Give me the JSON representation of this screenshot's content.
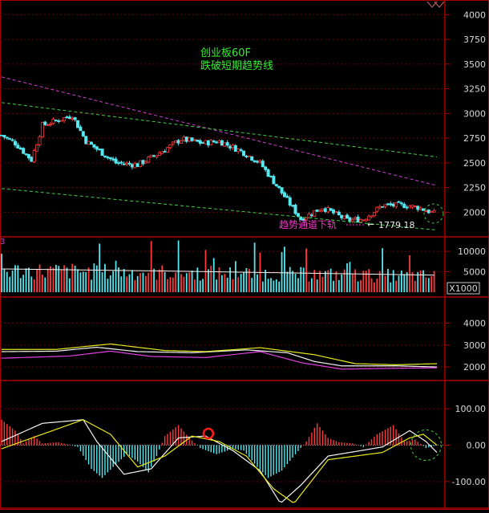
{
  "colors": {
    "background": "#000000",
    "panel_border": "#aa0000",
    "grid": "#6a0000",
    "axis_text": "#d8d8d8",
    "up": "#ff3a3a",
    "down": "#54e8f0",
    "upper_channel": "#d040d0",
    "green_lines": "#44cc44",
    "annotation_green": "#33ee33",
    "annotation_magenta": "#ff33cc",
    "ma_white": "#f4f4f4",
    "ma_yellow": "#e8e820",
    "ma_magenta": "#e040e0",
    "marker_red": "#ff1a1a"
  },
  "chart_data": [
    {
      "type": "candlestick",
      "title": "创业板60F",
      "subtitle": "跌破短期趋势线",
      "annotations": [
        "趋势通道下轨",
        "1779.18"
      ],
      "yticks": [
        4000,
        3750,
        3500,
        3250,
        3000,
        2750,
        2500,
        2250,
        2000
      ],
      "ylim": [
        1800,
        4100
      ],
      "grid": true,
      "anchors": [
        [
          0,
          2780
        ],
        [
          10,
          2700
        ],
        [
          22,
          2530
        ],
        [
          30,
          2880
        ],
        [
          52,
          2980
        ],
        [
          62,
          2720
        ],
        [
          72,
          2620
        ],
        [
          84,
          2500
        ],
        [
          100,
          2480
        ],
        [
          116,
          2600
        ],
        [
          132,
          2740
        ],
        [
          148,
          2700
        ],
        [
          160,
          2720
        ],
        [
          176,
          2620
        ],
        [
          190,
          2500
        ],
        [
          208,
          2160
        ],
        [
          220,
          1930
        ],
        [
          236,
          2050
        ],
        [
          254,
          1920
        ],
        [
          266,
          1930
        ],
        [
          280,
          2070
        ],
        [
          296,
          2070
        ],
        [
          306,
          2050
        ],
        [
          320,
          1980
        ]
      ],
      "lines": [
        {
          "from": [
            0,
            3370
          ],
          "to": [
            320,
            2270
          ]
        },
        {
          "from": [
            0,
            3110
          ],
          "to": [
            320,
            2560
          ]
        },
        {
          "from": [
            0,
            2240
          ],
          "to": [
            320,
            1820
          ]
        }
      ],
      "min_label_value": 1779.18
    },
    {
      "type": "bar",
      "yticks": [
        10000,
        5000
      ],
      "ylim": [
        0,
        12000
      ],
      "unit": "X1000",
      "grid": true
    },
    {
      "type": "line",
      "yticks": [
        4000,
        3000,
        2000
      ],
      "ylim": [
        1600,
        4900
      ],
      "grid": true,
      "series": [
        {
          "color": "white",
          "anchors": [
            [
              0,
              2700
            ],
            [
              40,
              2720
            ],
            [
              70,
              2900
            ],
            [
              100,
              2700
            ],
            [
              140,
              2650
            ],
            [
              180,
              2780
            ],
            [
              210,
              2650
            ],
            [
              230,
              2250
            ],
            [
              250,
              2050
            ],
            [
              290,
              2050
            ],
            [
              320,
              2000
            ]
          ]
        },
        {
          "color": "yellow",
          "anchors": [
            [
              0,
              2800
            ],
            [
              40,
              2800
            ],
            [
              80,
              3050
            ],
            [
              120,
              2750
            ],
            [
              150,
              2700
            ],
            [
              190,
              2880
            ],
            [
              230,
              2560
            ],
            [
              260,
              2150
            ],
            [
              290,
              2100
            ],
            [
              320,
              2150
            ]
          ]
        },
        {
          "color": "magenta",
          "anchors": [
            [
              0,
              2400
            ],
            [
              50,
              2500
            ],
            [
              80,
              2720
            ],
            [
              110,
              2480
            ],
            [
              150,
              2430
            ],
            [
              190,
              2700
            ],
            [
              220,
              2200
            ],
            [
              250,
              1900
            ],
            [
              290,
              1940
            ],
            [
              320,
              1960
            ]
          ]
        }
      ]
    },
    {
      "type": "bar",
      "yticks": [
        100.0,
        0.0,
        -100.0
      ],
      "ylim": [
        -160,
        160
      ],
      "grid": true,
      "histogram_anchors": [
        [
          0,
          70
        ],
        [
          10,
          40
        ],
        [
          16,
          5
        ],
        [
          24,
          25
        ],
        [
          30,
          5
        ],
        [
          42,
          8
        ],
        [
          56,
          -5
        ],
        [
          66,
          -65
        ],
        [
          74,
          -90
        ],
        [
          82,
          -60
        ],
        [
          92,
          -25
        ],
        [
          100,
          -45
        ],
        [
          108,
          -75
        ],
        [
          114,
          -30
        ],
        [
          120,
          25
        ],
        [
          130,
          55
        ],
        [
          138,
          20
        ],
        [
          146,
          -8
        ],
        [
          158,
          -25
        ],
        [
          170,
          -10
        ],
        [
          178,
          -15
        ],
        [
          188,
          -60
        ],
        [
          196,
          -90
        ],
        [
          206,
          -70
        ],
        [
          216,
          -25
        ],
        [
          224,
          10
        ],
        [
          232,
          60
        ],
        [
          240,
          20
        ],
        [
          248,
          8
        ],
        [
          258,
          5
        ],
        [
          266,
          -5
        ],
        [
          276,
          30
        ],
        [
          288,
          55
        ],
        [
          296,
          10
        ],
        [
          304,
          15
        ],
        [
          312,
          -8
        ],
        [
          320,
          0
        ]
      ],
      "series": [
        {
          "color": "white",
          "anchors": [
            [
              0,
              10
            ],
            [
              30,
              60
            ],
            [
              60,
              70
            ],
            [
              70,
              10
            ],
            [
              90,
              -80
            ],
            [
              110,
              -65
            ],
            [
              130,
              20
            ],
            [
              150,
              25
            ],
            [
              170,
              -15
            ],
            [
              190,
              -70
            ],
            [
              205,
              -160
            ],
            [
              220,
              -110
            ],
            [
              240,
              -30
            ],
            [
              280,
              -5
            ],
            [
              300,
              40
            ],
            [
              312,
              10
            ],
            [
              320,
              -20
            ]
          ]
        },
        {
          "color": "yellow",
          "anchors": [
            [
              0,
              -10
            ],
            [
              30,
              30
            ],
            [
              60,
              70
            ],
            [
              80,
              30
            ],
            [
              100,
              -60
            ],
            [
              120,
              -30
            ],
            [
              140,
              25
            ],
            [
              160,
              10
            ],
            [
              180,
              -30
            ],
            [
              200,
              -120
            ],
            [
              215,
              -160
            ],
            [
              240,
              -40
            ],
            [
              280,
              -20
            ],
            [
              300,
              20
            ],
            [
              310,
              30
            ],
            [
              320,
              0
            ]
          ]
        }
      ],
      "markers": [
        {
          "type": "circle",
          "x": 152,
          "y": 32
        },
        {
          "type": "dashed-circle",
          "x": 312,
          "y": 0
        }
      ]
    }
  ]
}
